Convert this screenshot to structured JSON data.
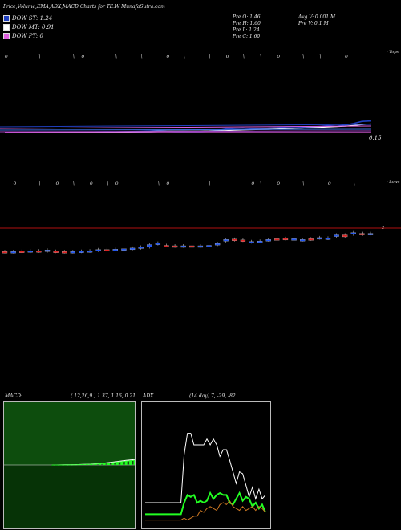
{
  "header": {
    "title": "Price,Volume,EMA,ADX,MACD Charts for TE.W MunafaSutra.com"
  },
  "legend": [
    {
      "label": "DOW ST: 1.24",
      "color": "#1f3fbf"
    },
    {
      "label": "DOW MT: 0.91",
      "color": "#ffffff"
    },
    {
      "label": "DOW PT: 0",
      "color": "#e060e0"
    }
  ],
  "stats": {
    "prev_open": "Pre  O: 1.46",
    "prev_high": "Pre  H: 1.60",
    "prev_low": "Pre  L: 1.24",
    "prev_close": "Pre  C: 1.60",
    "avg_volume": "Avg V: 0.001 M",
    "prev_volume": "Pre  V: 0.1 M"
  },
  "labels": {
    "tops": "- Tops",
    "lows": "- Lows",
    "ema_value": "0.15",
    "price_marker": "2"
  },
  "chart_data": [
    {
      "type": "line",
      "name": "price-ema",
      "x": [
        0,
        1,
        2,
        3,
        4,
        5,
        6,
        7,
        8,
        9,
        10,
        11,
        12,
        13,
        14,
        15,
        16,
        17,
        18,
        19,
        20,
        21,
        22,
        23,
        24,
        25,
        26,
        27,
        28,
        29,
        30,
        31,
        32,
        33,
        34,
        35,
        36,
        37,
        38,
        39,
        40,
        41,
        42,
        43
      ],
      "series": [
        {
          "color": "#1f3fbf",
          "values": [
            0.02,
            0.03,
            0.02,
            0.03,
            0.04,
            0.02,
            0.03,
            0.05,
            0.04,
            0.06,
            0.05,
            0.07,
            0.08,
            0.07,
            0.09,
            0.1,
            0.12,
            0.16,
            0.2,
            0.16,
            0.14,
            0.15,
            0.13,
            0.14,
            0.16,
            0.2,
            0.36,
            0.44,
            0.48,
            0.4,
            0.38,
            0.46,
            0.5,
            0.6,
            0.62,
            0.56,
            0.58,
            0.64,
            0.74,
            0.66,
            0.8,
            0.96,
            1.2,
            1.24
          ]
        },
        {
          "color": "#ffffff",
          "values": [
            0.04,
            0.04,
            0.05,
            0.05,
            0.05,
            0.05,
            0.06,
            0.06,
            0.06,
            0.07,
            0.07,
            0.08,
            0.08,
            0.08,
            0.09,
            0.1,
            0.11,
            0.12,
            0.14,
            0.15,
            0.15,
            0.15,
            0.15,
            0.15,
            0.16,
            0.17,
            0.2,
            0.24,
            0.28,
            0.3,
            0.32,
            0.34,
            0.37,
            0.41,
            0.45,
            0.48,
            0.51,
            0.55,
            0.6,
            0.63,
            0.68,
            0.75,
            0.84,
            0.91
          ]
        },
        {
          "color": "#e060e0",
          "values": [
            0,
            0,
            0,
            0,
            0,
            0,
            0,
            0,
            0,
            0,
            0,
            0,
            0,
            0,
            0,
            0,
            0,
            0,
            0,
            0,
            0,
            0,
            0,
            0,
            0,
            0,
            0,
            0,
            0,
            0,
            0,
            0,
            0,
            0,
            0,
            0,
            0,
            0,
            0,
            0,
            0,
            0,
            0,
            0
          ]
        }
      ],
      "candles": [
        {
          "o": 0.2,
          "c": 0.18
        },
        {
          "o": 0.18,
          "c": 0.2
        },
        {
          "o": 0.22,
          "c": 0.2
        },
        {
          "o": 0.2,
          "c": 0.24
        },
        {
          "o": 0.24,
          "c": 0.22
        },
        {
          "o": 0.22,
          "c": 0.28
        },
        {
          "o": 0.22,
          "c": 0.2
        },
        {
          "o": 0.2,
          "c": 0.18
        },
        {
          "o": 0.18,
          "c": 0.2
        },
        {
          "o": 0.2,
          "c": 0.22
        },
        {
          "o": 0.22,
          "c": 0.24
        },
        {
          "o": 0.26,
          "c": 0.3
        },
        {
          "o": 0.3,
          "c": 0.28
        },
        {
          "o": 0.3,
          "c": 0.32
        },
        {
          "o": 0.32,
          "c": 0.34
        },
        {
          "o": 0.34,
          "c": 0.38
        },
        {
          "o": 0.38,
          "c": 0.44
        },
        {
          "o": 0.44,
          "c": 0.56
        },
        {
          "o": 0.6,
          "c": 0.64
        },
        {
          "o": 0.52,
          "c": 0.5
        },
        {
          "o": 0.5,
          "c": 0.48
        },
        {
          "o": 0.48,
          "c": 0.5
        },
        {
          "o": 0.5,
          "c": 0.48
        },
        {
          "o": 0.48,
          "c": 0.5
        },
        {
          "o": 0.5,
          "c": 0.52
        },
        {
          "o": 0.56,
          "c": 0.62
        },
        {
          "o": 0.74,
          "c": 0.82
        },
        {
          "o": 0.84,
          "c": 0.8
        },
        {
          "o": 0.8,
          "c": 0.78
        },
        {
          "o": 0.7,
          "c": 0.72
        },
        {
          "o": 0.72,
          "c": 0.74
        },
        {
          "o": 0.8,
          "c": 0.82
        },
        {
          "o": 0.86,
          "c": 0.84
        },
        {
          "o": 0.88,
          "c": 0.86
        },
        {
          "o": 0.84,
          "c": 0.86
        },
        {
          "o": 0.8,
          "c": 0.82
        },
        {
          "o": 0.86,
          "c": 0.84
        },
        {
          "o": 0.9,
          "c": 0.92
        },
        {
          "o": 0.88,
          "c": 0.9
        },
        {
          "o": 1.0,
          "c": 1.06
        },
        {
          "o": 1.06,
          "c": 0.96
        },
        {
          "o": 1.1,
          "c": 1.18
        },
        {
          "o": 1.14,
          "c": 1.1
        },
        {
          "o": 1.12,
          "c": 1.14
        }
      ]
    },
    {
      "type": "line",
      "name": "macd",
      "title": "MACD:",
      "params": "( 12,26,9 ) 1.37, 1.16, 0.21",
      "x": [
        0,
        1,
        2,
        3,
        4,
        5,
        6,
        7,
        8,
        9,
        10,
        11,
        12,
        13,
        14,
        15,
        16,
        17,
        18,
        19
      ],
      "series": [
        {
          "color": "#ffffff",
          "values": [
            0,
            0.01,
            0.02,
            0.04,
            0.06,
            0.08,
            0.1,
            0.14,
            0.18,
            0.22,
            0.3,
            0.38,
            0.48,
            0.6,
            0.72,
            0.86,
            1.0,
            1.14,
            1.26,
            1.37
          ]
        },
        {
          "color": "#44ff44",
          "values": [
            0,
            0,
            0.01,
            0.02,
            0.04,
            0.06,
            0.08,
            0.1,
            0.14,
            0.18,
            0.24,
            0.3,
            0.38,
            0.48,
            0.58,
            0.7,
            0.82,
            0.94,
            1.06,
            1.16
          ]
        }
      ]
    },
    {
      "type": "line",
      "name": "adx",
      "title": "ADX",
      "params": "(14  day) 7,  -29,  -82",
      "x": [
        0,
        1,
        2,
        3,
        4,
        5,
        6,
        7,
        8,
        9,
        10,
        11,
        12,
        13,
        14,
        15,
        16,
        17,
        18,
        19,
        20,
        21,
        22,
        23,
        24,
        25,
        26,
        27,
        28,
        29,
        30,
        31,
        32,
        33,
        34,
        35,
        36,
        37
      ],
      "ylim": [
        0,
        100
      ],
      "series": [
        {
          "color": "#ffffff",
          "values": [
            20,
            20,
            20,
            20,
            20,
            20,
            20,
            20,
            20,
            20,
            20,
            20,
            70,
            92,
            92,
            80,
            80,
            80,
            80,
            86,
            80,
            86,
            80,
            68,
            75,
            75,
            64,
            52,
            40,
            52,
            50,
            38,
            26,
            36,
            24,
            34,
            24,
            28
          ]
        },
        {
          "color": "#22ff22",
          "values": [
            8,
            8,
            8,
            8,
            8,
            8,
            8,
            8,
            8,
            8,
            8,
            8,
            20,
            28,
            26,
            28,
            20,
            22,
            20,
            22,
            30,
            24,
            28,
            30,
            28,
            28,
            20,
            18,
            24,
            30,
            22,
            26,
            24,
            16,
            20,
            14,
            18,
            10
          ]
        },
        {
          "color": "#cc7722",
          "values": [
            2,
            2,
            2,
            2,
            2,
            2,
            2,
            2,
            2,
            2,
            2,
            2,
            4,
            2,
            4,
            6,
            6,
            12,
            10,
            14,
            16,
            14,
            12,
            18,
            20,
            18,
            22,
            16,
            14,
            12,
            16,
            12,
            14,
            16,
            12,
            16,
            14,
            10
          ]
        }
      ]
    }
  ]
}
